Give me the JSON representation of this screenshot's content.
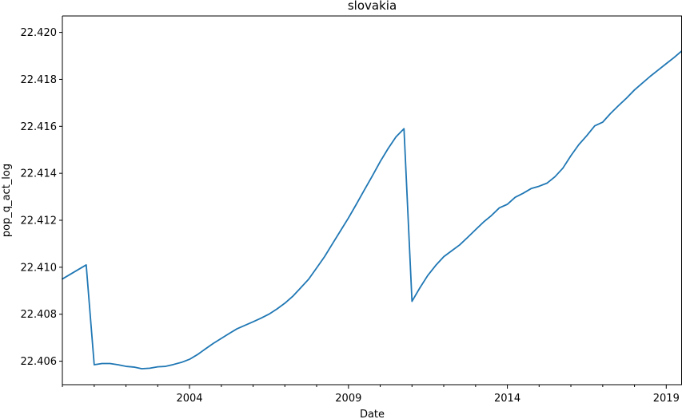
{
  "chart_data": {
    "type": "line",
    "title": "slovakia",
    "xlabel": "Date",
    "ylabel": "pop_q_act_log",
    "xlim": [
      "2000-01-01",
      "2019-07-01"
    ],
    "ylim": [
      22.405,
      22.4207
    ],
    "grid": false,
    "y_ticks": [
      "22.406",
      "22.408",
      "22.410",
      "22.412",
      "22.414",
      "22.416",
      "22.418",
      "22.420"
    ],
    "x_ticks": [
      "2004",
      "2009",
      "2014",
      "2019"
    ],
    "series": [
      {
        "name": "",
        "color": "#1f77b4",
        "x": [
          "2000-01-01",
          "2000-04-01",
          "2000-07-01",
          "2000-10-01",
          "2001-01-01",
          "2001-04-01",
          "2001-07-01",
          "2001-10-01",
          "2002-01-01",
          "2002-04-01",
          "2002-07-01",
          "2002-10-01",
          "2003-01-01",
          "2003-04-01",
          "2003-07-01",
          "2003-10-01",
          "2004-01-01",
          "2004-04-01",
          "2004-07-01",
          "2004-10-01",
          "2005-01-01",
          "2005-04-01",
          "2005-07-01",
          "2005-10-01",
          "2006-01-01",
          "2006-04-01",
          "2006-07-01",
          "2006-10-01",
          "2007-01-01",
          "2007-04-01",
          "2007-07-01",
          "2007-10-01",
          "2008-01-01",
          "2008-04-01",
          "2008-07-01",
          "2008-10-01",
          "2009-01-01",
          "2009-04-01",
          "2009-07-01",
          "2009-10-01",
          "2010-01-01",
          "2010-04-01",
          "2010-07-01",
          "2010-10-01",
          "2011-01-01",
          "2011-04-01",
          "2011-07-01",
          "2011-10-01",
          "2012-01-01",
          "2012-04-01",
          "2012-07-01",
          "2012-10-01",
          "2013-01-01",
          "2013-04-01",
          "2013-07-01",
          "2013-10-01",
          "2014-01-01",
          "2014-04-01",
          "2014-07-01",
          "2014-10-01",
          "2015-01-01",
          "2015-04-01",
          "2015-07-01",
          "2015-10-01",
          "2016-01-01",
          "2016-04-01",
          "2016-07-01",
          "2016-10-01",
          "2017-01-01",
          "2017-04-01",
          "2017-07-01",
          "2017-10-01",
          "2018-01-01",
          "2018-04-01",
          "2018-07-01",
          "2018-10-01",
          "2019-01-01",
          "2019-04-01",
          "2019-07-01"
        ],
        "y": [
          22.4095,
          22.4097,
          22.4099,
          22.4101,
          22.40585,
          22.4059,
          22.4059,
          22.40585,
          22.40578,
          22.40575,
          22.40568,
          22.4057,
          22.40576,
          22.40578,
          22.40586,
          22.40595,
          22.40608,
          22.40628,
          22.40652,
          22.40676,
          22.40697,
          22.40718,
          22.40738,
          22.40753,
          22.40768,
          22.40783,
          22.408,
          22.40822,
          22.40847,
          22.40876,
          22.40912,
          22.40949,
          22.40997,
          22.41045,
          22.411,
          22.41155,
          22.4121,
          22.41268,
          22.41328,
          22.41388,
          22.4145,
          22.41505,
          22.41555,
          22.4159,
          22.40855,
          22.40912,
          22.40965,
          22.41008,
          22.41045,
          22.4107,
          22.41095,
          22.41127,
          22.4116,
          22.41192,
          22.4122,
          22.41253,
          22.41268,
          22.41298,
          22.41315,
          22.41335,
          22.41345,
          22.41358,
          22.41385,
          22.41422,
          22.41475,
          22.41522,
          22.4156,
          22.41602,
          22.41618,
          22.41655,
          22.41688,
          22.4172,
          22.41755,
          22.41784,
          22.41813,
          22.4184,
          22.41867,
          22.41893,
          22.41922
        ]
      }
    ]
  }
}
